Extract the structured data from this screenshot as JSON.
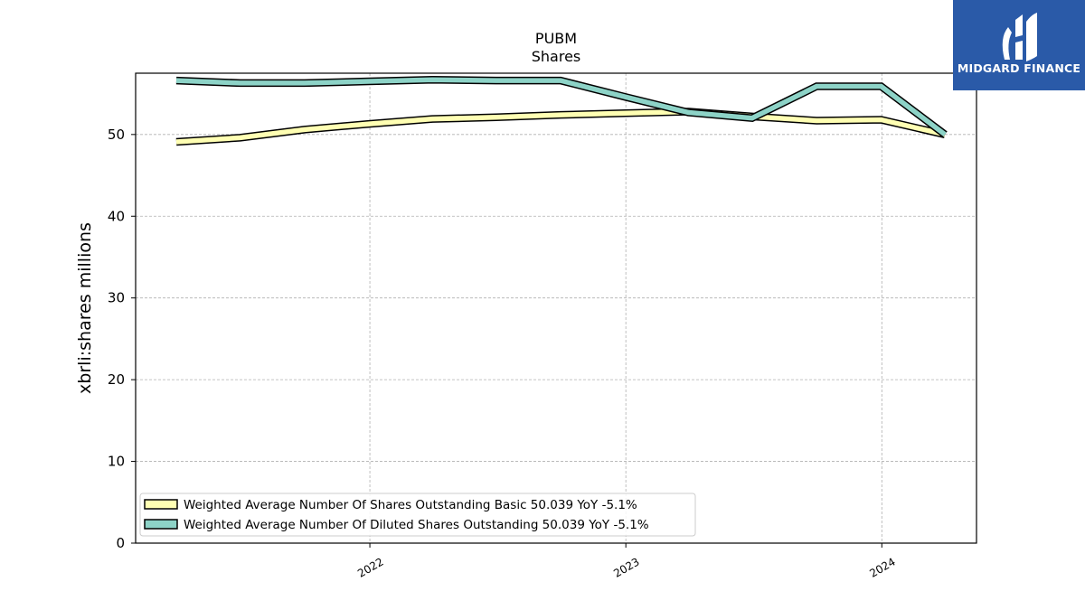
{
  "brand": {
    "name": "MIDGARD FINANCE",
    "color": "#2a5aa8"
  },
  "chart_data": {
    "type": "line",
    "title": "PUBM",
    "subtitle": "Shares",
    "ylabel": "xbrli:shares millions",
    "xlabel": "",
    "ylim": [
      0,
      57.5
    ],
    "yticks": [
      0,
      10,
      20,
      30,
      40,
      50
    ],
    "xlim": [
      "2021-02-01",
      "2024-05-15"
    ],
    "xticks": [
      {
        "label": "2022",
        "date": "2022-01-01"
      },
      {
        "label": "2023",
        "date": "2023-01-01"
      },
      {
        "label": "2024",
        "date": "2024-01-01"
      }
    ],
    "grid": true,
    "legend_position": "lower-left",
    "x": [
      "2021-03-31",
      "2021-06-30",
      "2021-09-30",
      "2021-12-31",
      "2022-03-31",
      "2022-06-30",
      "2022-09-30",
      "2022-12-31",
      "2023-03-31",
      "2023-06-30",
      "2023-09-30",
      "2023-12-31",
      "2024-03-31"
    ],
    "series": [
      {
        "name": "Weighted Average Number Of Shares Outstanding Basic  50.039 YoY -5.1%",
        "color": "#ffffb3",
        "values": [
          49.1,
          49.6,
          50.6,
          51.3,
          51.9,
          52.1,
          52.4,
          52.6,
          52.8,
          52.2,
          51.7,
          51.8,
          50.0
        ]
      },
      {
        "name": "Weighted Average Number Of Diluted Shares Outstanding  50.039 YoY -5.1%",
        "color": "#8dd3c7",
        "values": [
          56.6,
          56.3,
          56.3,
          56.5,
          56.7,
          56.6,
          56.6,
          54.6,
          52.7,
          52.0,
          55.9,
          55.9,
          50.0
        ]
      }
    ]
  }
}
